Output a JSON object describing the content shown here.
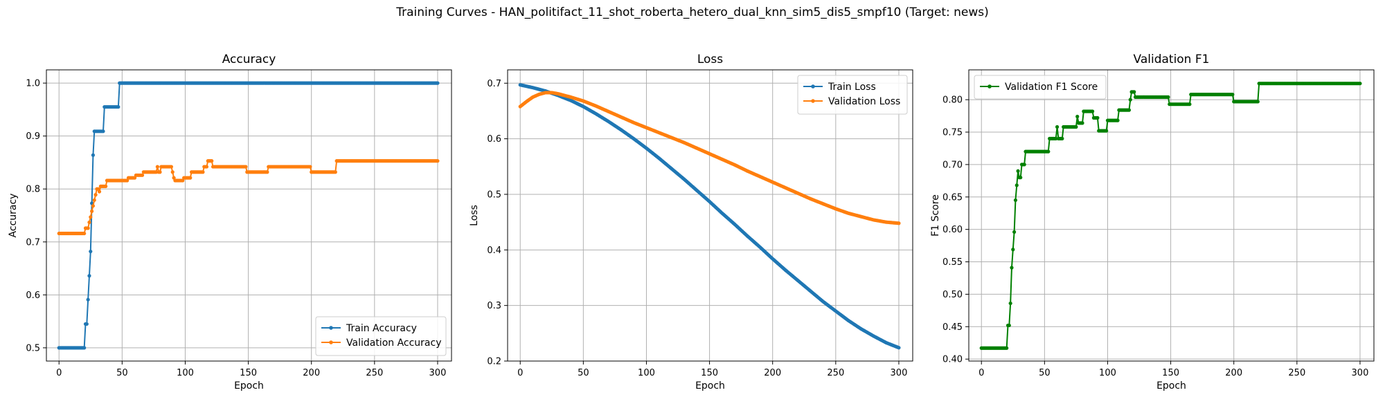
{
  "figure": {
    "suptitle": "Training Curves - HAN_politifact_11_shot_roberta_hetero_dual_knn_sim5_dis5_smpf10 (Target: news)"
  },
  "colors": {
    "blue": "#1f77b4",
    "orange": "#ff7f0e",
    "green": "#008000",
    "grid": "#b0b0b0"
  },
  "chart_data": [
    {
      "type": "line",
      "title": "Accuracy",
      "xlabel": "Epoch",
      "ylabel": "Accuracy",
      "xlim": [
        -10,
        311
      ],
      "ylim": [
        0.475,
        1.025
      ],
      "xticks": [
        0,
        50,
        100,
        150,
        200,
        250,
        300
      ],
      "yticks": [
        0.5,
        0.6,
        0.7,
        0.8,
        0.9,
        1.0
      ],
      "ytick_labels": [
        "0.5",
        "0.6",
        "0.7",
        "0.8",
        "0.9",
        "1.0"
      ],
      "grid": true,
      "legend_position": "lower-right",
      "series": [
        {
          "name": "Train Accuracy",
          "color": "#1f77b4",
          "steps": [
            [
              0,
              0.5
            ],
            [
              20,
              0.5
            ],
            [
              21,
              0.545
            ],
            [
              22,
              0.545
            ],
            [
              23,
              0.591
            ],
            [
              24,
              0.636
            ],
            [
              25,
              0.682
            ],
            [
              26,
              0.773
            ],
            [
              27,
              0.864
            ],
            [
              28,
              0.909
            ],
            [
              35,
              0.909
            ],
            [
              36,
              0.955
            ],
            [
              47,
              0.955
            ],
            [
              48,
              1.0
            ],
            [
              300,
              1.0
            ]
          ]
        },
        {
          "name": "Validation Accuracy",
          "color": "#ff7f0e",
          "steps": [
            [
              0,
              0.716
            ],
            [
              20,
              0.716
            ],
            [
              21,
              0.726
            ],
            [
              23,
              0.726
            ],
            [
              24,
              0.737
            ],
            [
              25,
              0.747
            ],
            [
              26,
              0.758
            ],
            [
              27,
              0.768
            ],
            [
              28,
              0.779
            ],
            [
              29,
              0.789
            ],
            [
              30,
              0.8
            ],
            [
              31,
              0.8
            ],
            [
              32,
              0.795
            ],
            [
              33,
              0.805
            ],
            [
              37,
              0.805
            ],
            [
              38,
              0.816
            ],
            [
              54,
              0.816
            ],
            [
              55,
              0.821
            ],
            [
              60,
              0.821
            ],
            [
              61,
              0.826
            ],
            [
              66,
              0.826
            ],
            [
              67,
              0.832
            ],
            [
              77,
              0.832
            ],
            [
              78,
              0.842
            ],
            [
              79,
              0.832
            ],
            [
              80,
              0.832
            ],
            [
              81,
              0.842
            ],
            [
              89,
              0.842
            ],
            [
              90,
              0.832
            ],
            [
              91,
              0.821
            ],
            [
              92,
              0.816
            ],
            [
              98,
              0.816
            ],
            [
              99,
              0.821
            ],
            [
              104,
              0.821
            ],
            [
              105,
              0.832
            ],
            [
              114,
              0.832
            ],
            [
              115,
              0.842
            ],
            [
              117,
              0.842
            ],
            [
              118,
              0.853
            ],
            [
              121,
              0.853
            ],
            [
              122,
              0.842
            ],
            [
              148,
              0.842
            ],
            [
              149,
              0.832
            ],
            [
              165,
              0.832
            ],
            [
              166,
              0.842
            ],
            [
              199,
              0.842
            ],
            [
              200,
              0.832
            ],
            [
              219,
              0.832
            ],
            [
              220,
              0.853
            ],
            [
              300,
              0.853
            ]
          ]
        }
      ]
    },
    {
      "type": "line",
      "title": "Loss",
      "xlabel": "Epoch",
      "ylabel": "Loss",
      "xlim": [
        -10,
        311
      ],
      "ylim": [
        0.2,
        0.724
      ],
      "xticks": [
        0,
        50,
        100,
        150,
        200,
        250,
        300
      ],
      "yticks": [
        0.2,
        0.3,
        0.4,
        0.5,
        0.6,
        0.7
      ],
      "ytick_labels": [
        "0.2",
        "0.3",
        "0.4",
        "0.5",
        "0.6",
        "0.7"
      ],
      "grid": true,
      "legend_position": "top-right",
      "series": [
        {
          "name": "Train Loss",
          "color": "#1f77b4",
          "points": [
            [
              0,
              0.697
            ],
            [
              10,
              0.692
            ],
            [
              20,
              0.686
            ],
            [
              30,
              0.678
            ],
            [
              40,
              0.669
            ],
            [
              50,
              0.658
            ],
            [
              60,
              0.645
            ],
            [
              70,
              0.631
            ],
            [
              80,
              0.616
            ],
            [
              90,
              0.6
            ],
            [
              100,
              0.583
            ],
            [
              110,
              0.565
            ],
            [
              120,
              0.546
            ],
            [
              130,
              0.527
            ],
            [
              140,
              0.507
            ],
            [
              150,
              0.487
            ],
            [
              160,
              0.466
            ],
            [
              170,
              0.446
            ],
            [
              180,
              0.425
            ],
            [
              190,
              0.405
            ],
            [
              200,
              0.384
            ],
            [
              210,
              0.364
            ],
            [
              220,
              0.345
            ],
            [
              230,
              0.326
            ],
            [
              240,
              0.307
            ],
            [
              250,
              0.29
            ],
            [
              260,
              0.273
            ],
            [
              270,
              0.258
            ],
            [
              280,
              0.245
            ],
            [
              290,
              0.233
            ],
            [
              300,
              0.224
            ]
          ]
        },
        {
          "name": "Validation Loss",
          "color": "#ff7f0e",
          "points": [
            [
              0,
              0.658
            ],
            [
              5,
              0.667
            ],
            [
              10,
              0.675
            ],
            [
              15,
              0.68
            ],
            [
              20,
              0.683
            ],
            [
              25,
              0.683
            ],
            [
              30,
              0.681
            ],
            [
              40,
              0.675
            ],
            [
              50,
              0.668
            ],
            [
              60,
              0.659
            ],
            [
              70,
              0.649
            ],
            [
              80,
              0.639
            ],
            [
              90,
              0.629
            ],
            [
              100,
              0.62
            ],
            [
              110,
              0.611
            ],
            [
              120,
              0.602
            ],
            [
              130,
              0.593
            ],
            [
              140,
              0.583
            ],
            [
              150,
              0.573
            ],
            [
              160,
              0.563
            ],
            [
              170,
              0.553
            ],
            [
              180,
              0.542
            ],
            [
              190,
              0.532
            ],
            [
              200,
              0.522
            ],
            [
              210,
              0.512
            ],
            [
              220,
              0.502
            ],
            [
              230,
              0.492
            ],
            [
              240,
              0.483
            ],
            [
              250,
              0.474
            ],
            [
              260,
              0.466
            ],
            [
              270,
              0.46
            ],
            [
              280,
              0.454
            ],
            [
              290,
              0.45
            ],
            [
              300,
              0.448
            ]
          ]
        }
      ]
    },
    {
      "type": "line",
      "title": "Validation F1",
      "xlabel": "Epoch",
      "ylabel": "F1 Score",
      "xlim": [
        -10,
        311
      ],
      "ylim": [
        0.397,
        0.846
      ],
      "xticks": [
        0,
        50,
        100,
        150,
        200,
        250,
        300
      ],
      "yticks": [
        0.4,
        0.45,
        0.5,
        0.55,
        0.6,
        0.65,
        0.7,
        0.75,
        0.8
      ],
      "ytick_labels": [
        "0.40",
        "0.45",
        "0.50",
        "0.55",
        "0.60",
        "0.65",
        "0.70",
        "0.75",
        "0.80"
      ],
      "grid": true,
      "legend_position": "top-left",
      "series": [
        {
          "name": "Validation F1 Score",
          "color": "#008000",
          "steps": [
            [
              0,
              0.417
            ],
            [
              20,
              0.417
            ],
            [
              21,
              0.452
            ],
            [
              22,
              0.452
            ],
            [
              23,
              0.486
            ],
            [
              24,
              0.541
            ],
            [
              25,
              0.569
            ],
            [
              26,
              0.596
            ],
            [
              27,
              0.645
            ],
            [
              28,
              0.668
            ],
            [
              29,
              0.69
            ],
            [
              30,
              0.68
            ],
            [
              31,
              0.68
            ],
            [
              32,
              0.7
            ],
            [
              34,
              0.7
            ],
            [
              35,
              0.72
            ],
            [
              53,
              0.72
            ],
            [
              54,
              0.74
            ],
            [
              59,
              0.74
            ],
            [
              60,
              0.758
            ],
            [
              61,
              0.74
            ],
            [
              64,
              0.74
            ],
            [
              65,
              0.758
            ],
            [
              75,
              0.758
            ],
            [
              76,
              0.774
            ],
            [
              77,
              0.764
            ],
            [
              80,
              0.764
            ],
            [
              81,
              0.782
            ],
            [
              88,
              0.782
            ],
            [
              89,
              0.772
            ],
            [
              92,
              0.772
            ],
            [
              93,
              0.752
            ],
            [
              99,
              0.752
            ],
            [
              100,
              0.768
            ],
            [
              108,
              0.768
            ],
            [
              109,
              0.784
            ],
            [
              117,
              0.784
            ],
            [
              118,
              0.8
            ],
            [
              119,
              0.812
            ],
            [
              121,
              0.812
            ],
            [
              122,
              0.804
            ],
            [
              148,
              0.804
            ],
            [
              149,
              0.793
            ],
            [
              165,
              0.793
            ],
            [
              166,
              0.808
            ],
            [
              199,
              0.808
            ],
            [
              200,
              0.797
            ],
            [
              219,
              0.797
            ],
            [
              220,
              0.825
            ],
            [
              300,
              0.825
            ]
          ]
        }
      ]
    }
  ]
}
